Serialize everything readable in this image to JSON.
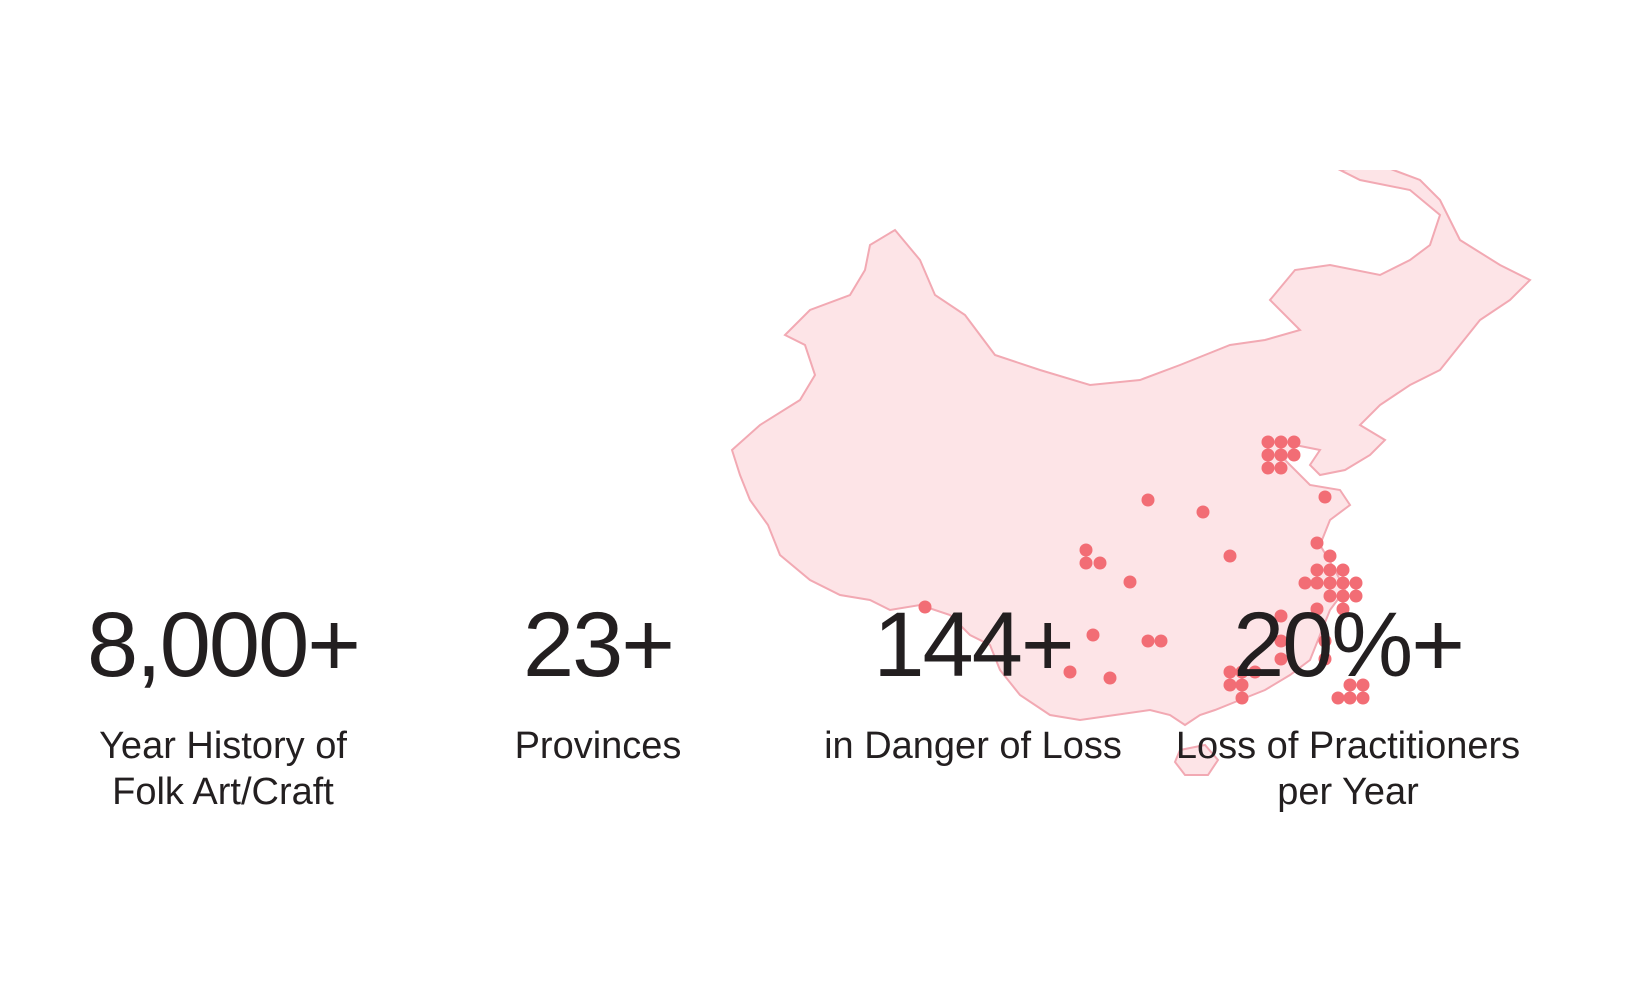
{
  "colors": {
    "map_fill": "#fde4e7",
    "map_stroke": "#f2a9b3",
    "dot": "#f26d75",
    "text": "#231f20",
    "background": "#ffffff"
  },
  "map": {
    "icon": "china-map-icon",
    "dot_icon": "location-dot-icon"
  },
  "stats": [
    {
      "number": "8,000+",
      "caption_line1": "Year History of",
      "caption_line2": "Folk Art/Craft"
    },
    {
      "number": "23+",
      "caption_line1": "Provinces",
      "caption_line2": ""
    },
    {
      "number": "144+",
      "caption_line1": "in Danger of Loss",
      "caption_line2": ""
    },
    {
      "number": "20%+",
      "caption_line1": "Loss of Practitioners",
      "caption_line2": "per Year"
    }
  ]
}
